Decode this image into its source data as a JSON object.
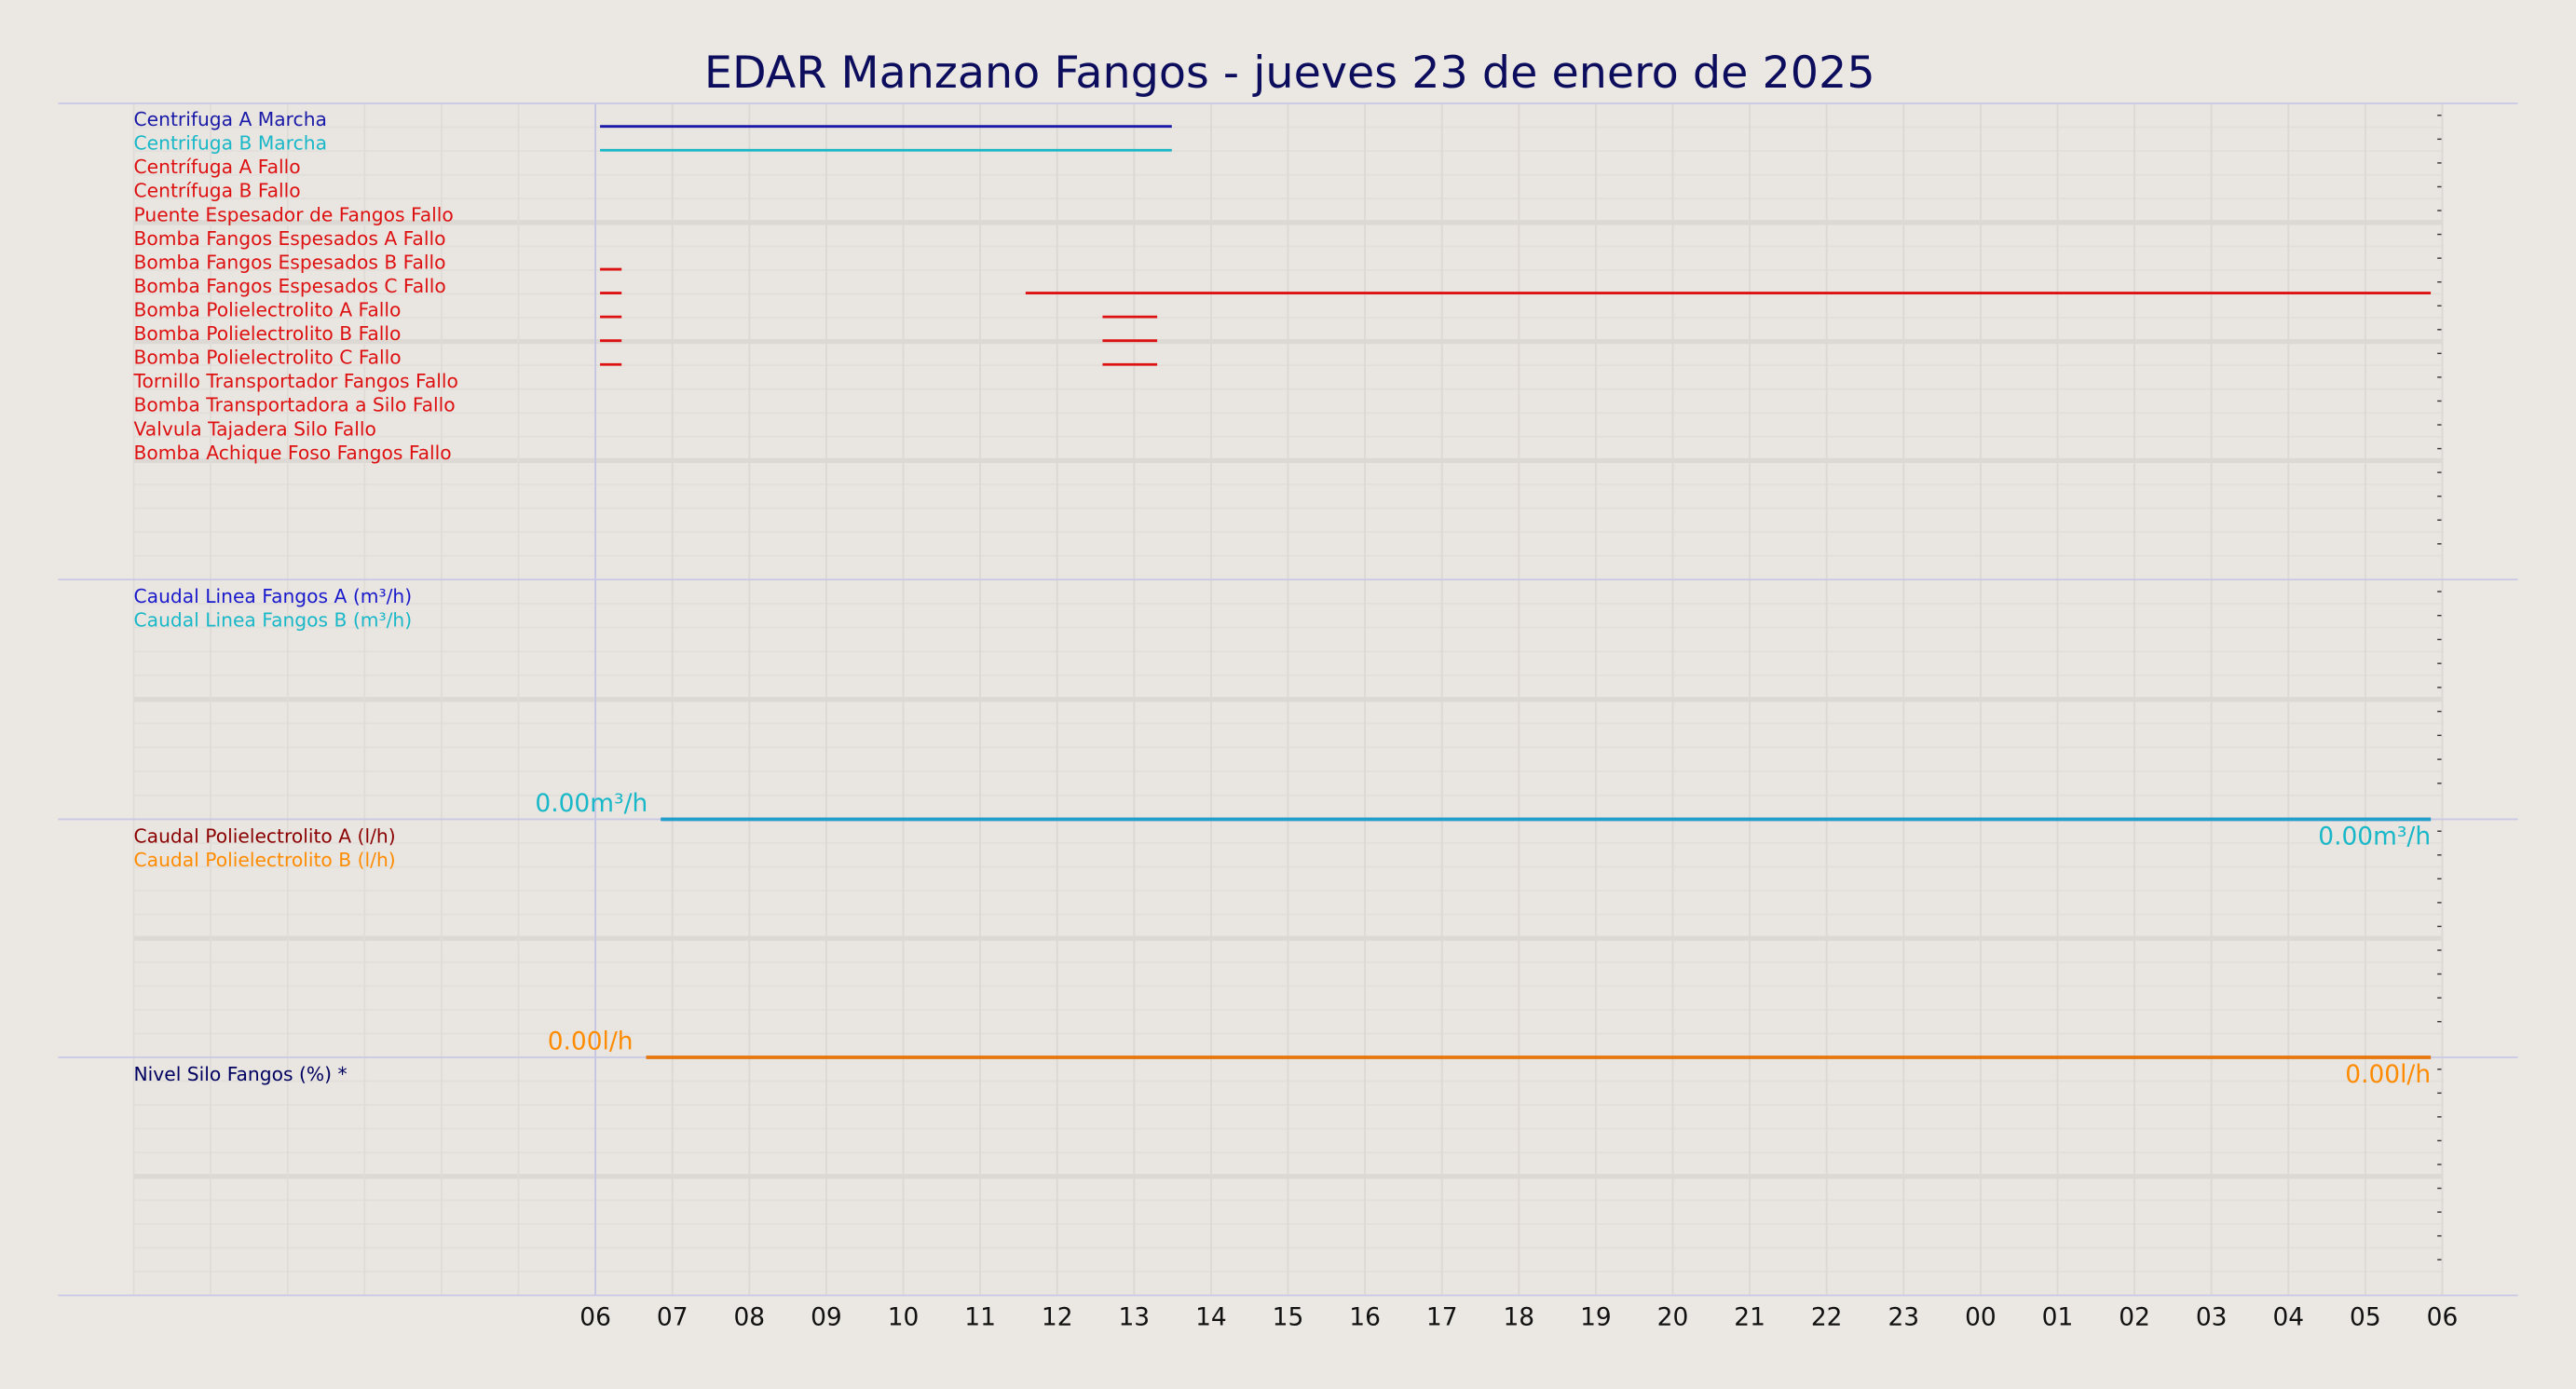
{
  "chart_data": {
    "type": "timeline",
    "title": "EDAR Manzano Fangos   -   jueves 23 de enero de 2025",
    "xlim": [
      0,
      30
    ],
    "xticks": [
      {
        "value": 6,
        "label": "06"
      },
      {
        "value": 7,
        "label": "07"
      },
      {
        "value": 8,
        "label": "08"
      },
      {
        "value": 9,
        "label": "09"
      },
      10,
      11,
      12,
      13,
      14,
      15,
      16,
      17,
      18,
      19,
      20,
      21,
      22,
      23,
      {
        "value": 24,
        "label": "00"
      },
      {
        "value": 25,
        "label": "01"
      },
      {
        "value": 26,
        "label": "02"
      },
      {
        "value": 27,
        "label": "03"
      },
      {
        "value": 28,
        "label": "04"
      },
      {
        "value": 29,
        "label": "05"
      },
      {
        "value": 30,
        "label": "06"
      }
    ],
    "grid": true,
    "panels": [
      {
        "type": "state",
        "series": [
          {
            "name": "Centrifuga A Marcha",
            "color": "#1a1aa8",
            "segments": [
              [
                6.06,
                13.49
              ]
            ]
          },
          {
            "name": "Centrifuga B Marcha",
            "color": "#19b8c8",
            "segments": [
              [
                6.06,
                13.49
              ]
            ]
          },
          {
            "name": "Centrífuga A Fallo",
            "color": "#dd1111",
            "segments": []
          },
          {
            "name": "Centrífuga B Fallo",
            "color": "#dd1111",
            "segments": []
          },
          {
            "name": "Puente Espesador de Fangos Fallo",
            "color": "#dd1111",
            "segments": []
          },
          {
            "name": "Bomba Fangos Espesados A Fallo",
            "color": "#dd1111",
            "segments": []
          },
          {
            "name": "Bomba Fangos Espesados B Fallo",
            "color": "#dd1111",
            "segments": [
              [
                6.06,
                6.34
              ]
            ]
          },
          {
            "name": "Bomba Fangos Espesados C Fallo",
            "color": "#dd1111",
            "segments": [
              [
                6.06,
                6.34
              ],
              [
                11.59,
                29.85
              ]
            ]
          },
          {
            "name": "Bomba Polielectrolito A Fallo",
            "color": "#dd1111",
            "segments": [
              [
                6.06,
                6.34
              ],
              [
                12.59,
                13.3
              ]
            ]
          },
          {
            "name": "Bomba Polielectrolito B Fallo",
            "color": "#dd1111",
            "segments": [
              [
                6.06,
                6.34
              ],
              [
                12.59,
                13.3
              ]
            ]
          },
          {
            "name": "Bomba Polielectrolito C Fallo",
            "color": "#dd1111",
            "segments": [
              [
                6.06,
                6.34
              ],
              [
                12.59,
                13.3
              ]
            ]
          },
          {
            "name": "Tornillo Transportador Fangos Fallo",
            "color": "#dd1111",
            "segments": []
          },
          {
            "name": "Bomba Transportadora a Silo Fallo",
            "color": "#dd1111",
            "segments": []
          },
          {
            "name": "Valvula Tajadera Silo Fallo",
            "color": "#dd1111",
            "segments": []
          },
          {
            "name": "Bomba Achique Foso Fangos Fallo",
            "color": "#dd1111",
            "segments": []
          }
        ]
      },
      {
        "type": "line",
        "ylim": [
          0,
          1
        ],
        "series": [
          {
            "name": "Caudal Linea Fangos A (m³/h)",
            "color": "#1a1acc",
            "x": [
              6.85,
              29.85
            ],
            "values": [
              0,
              0
            ]
          },
          {
            "name": "Caudal Linea Fangos B (m³/h)",
            "color": "#19b8c8",
            "x": [
              6.85,
              29.85
            ],
            "values": [
              0,
              0
            ],
            "value_labels": [
              "0.00m³/h",
              "0.00m³/h"
            ]
          }
        ]
      },
      {
        "type": "line",
        "ylim": [
          0,
          1
        ],
        "series": [
          {
            "name": "Caudal Polielectrolito A (l/h)",
            "color": "#8b0000",
            "x": [
              6.66,
              29.85
            ],
            "values": [
              0,
              0
            ]
          },
          {
            "name": "Caudal Polielectrolito B (l/h)",
            "color": "#ff8c00",
            "x": [
              6.66,
              29.85
            ],
            "values": [
              0,
              0
            ],
            "value_labels": [
              "0.00l/h",
              "0.00l/h"
            ]
          }
        ]
      },
      {
        "type": "line",
        "ylim": [
          0,
          1
        ],
        "series": [
          {
            "name": "Nivel Silo Fangos (%) *",
            "color": "#000060",
            "x": [],
            "values": []
          }
        ]
      }
    ]
  }
}
